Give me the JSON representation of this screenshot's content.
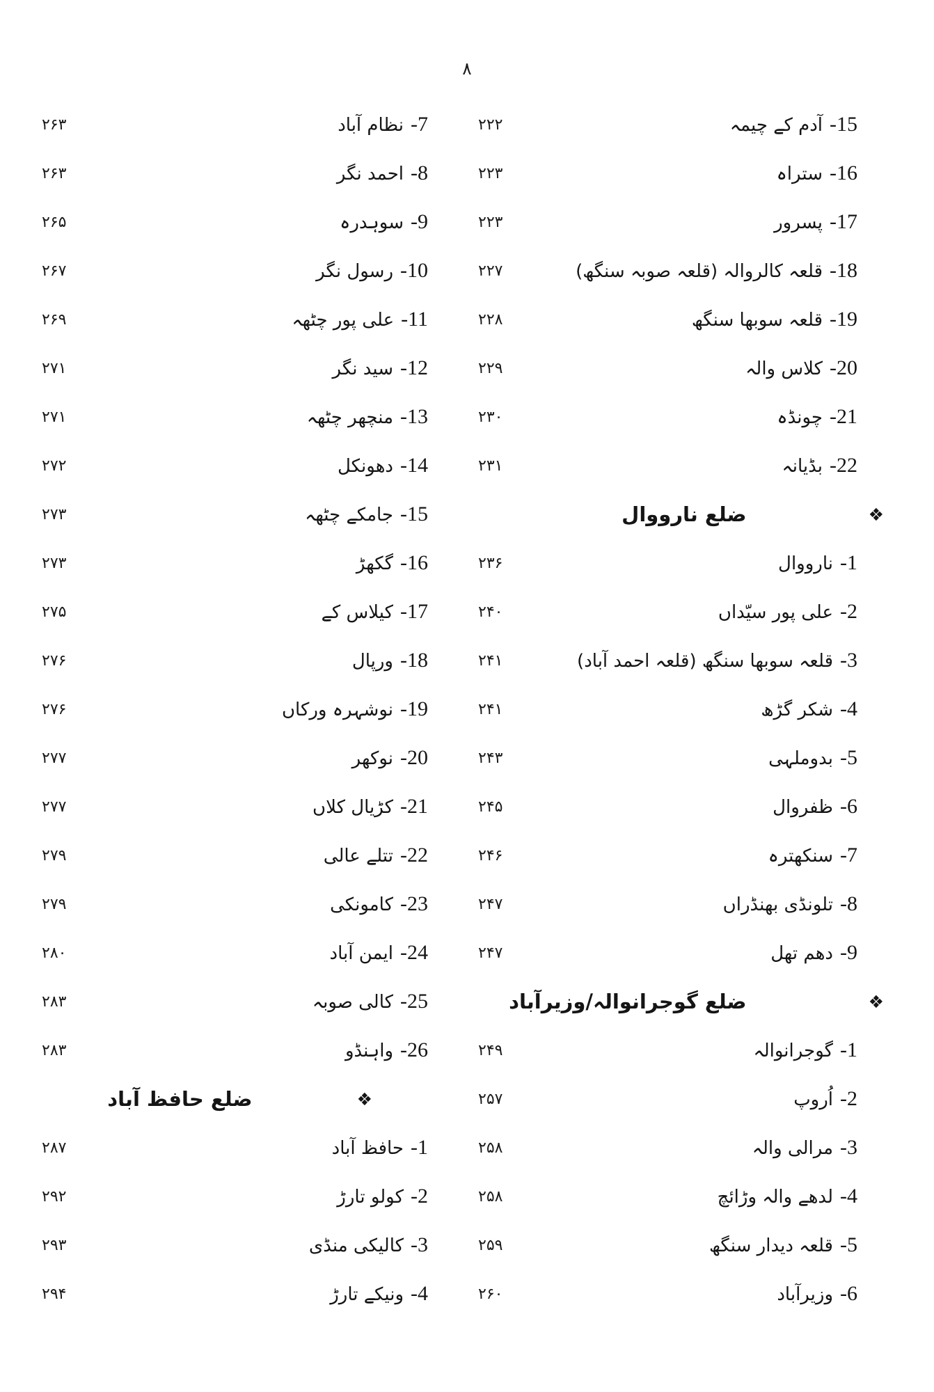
{
  "page": {
    "top_number": "۸",
    "diamond_mark": "❖"
  },
  "toc": {
    "rows": [
      {
        "left": {
          "no": "7",
          "name": "نظام آباد",
          "page": "۲۶۳"
        },
        "right": {
          "no": "15",
          "name": "آدم کے چیمہ",
          "page": "۲۲۲"
        }
      },
      {
        "left": {
          "no": "8",
          "name": "احمد نگر",
          "page": "۲۶۳"
        },
        "right": {
          "no": "16",
          "name": "ستراہ",
          "page": "۲۲۳"
        }
      },
      {
        "left": {
          "no": "9",
          "name": "سوہدرہ",
          "page": "۲۶۵"
        },
        "right": {
          "no": "17",
          "name": "پسرور",
          "page": "۲۲۳"
        }
      },
      {
        "left": {
          "no": "10",
          "name": "رسول نگر",
          "page": "۲۶۷"
        },
        "right": {
          "no": "18",
          "name": "قلعہ کالروالہ (قلعہ صوبہ سنگھ)",
          "page": "۲۲۷"
        }
      },
      {
        "left": {
          "no": "11",
          "name": "علی پور چٹھہ",
          "page": "۲۶۹"
        },
        "right": {
          "no": "19",
          "name": "قلعہ سوبھا سنگھ",
          "page": "۲۲۸"
        }
      },
      {
        "left": {
          "no": "12",
          "name": "سید نگر",
          "page": "۲۷۱"
        },
        "right": {
          "no": "20",
          "name": "کلاس والہ",
          "page": "۲۲۹"
        }
      },
      {
        "left": {
          "no": "13",
          "name": "منچھر چٹھہ",
          "page": "۲۷۱"
        },
        "right": {
          "no": "21",
          "name": "چونڈہ",
          "page": "۲۳۰"
        }
      },
      {
        "left": {
          "no": "14",
          "name": "دھونکل",
          "page": "۲۷۲"
        },
        "right": {
          "no": "22",
          "name": "بڈیانہ",
          "page": "۲۳۱"
        }
      },
      {
        "left": {
          "no": "15",
          "name": "جامکے چٹھہ",
          "page": "۲۷۳"
        },
        "right": {
          "heading": "ضلع نارووال"
        }
      },
      {
        "left": {
          "no": "16",
          "name": "گکھڑ",
          "page": "۲۷۳"
        },
        "right": {
          "no": "1",
          "name": "نارووال",
          "page": "۲۳۶"
        }
      },
      {
        "left": {
          "no": "17",
          "name": "کیلاس کے",
          "page": "۲۷۵"
        },
        "right": {
          "no": "2",
          "name": "علی پور سیّداں",
          "page": "۲۴۰"
        }
      },
      {
        "left": {
          "no": "18",
          "name": "ورپال",
          "page": "۲۷۶"
        },
        "right": {
          "no": "3",
          "name": "قلعہ سوبھا سنگھ (قلعہ احمد آباد)",
          "page": "۲۴۱"
        }
      },
      {
        "left": {
          "no": "19",
          "name": "نوشہرہ ورکاں",
          "page": "۲۷۶"
        },
        "right": {
          "no": "4",
          "name": "شکر گڑھ",
          "page": "۲۴۱"
        }
      },
      {
        "left": {
          "no": "20",
          "name": "نوکھر",
          "page": "۲۷۷"
        },
        "right": {
          "no": "5",
          "name": "بدوملہی",
          "page": "۲۴۳"
        }
      },
      {
        "left": {
          "no": "21",
          "name": "کڑیال کلاں",
          "page": "۲۷۷"
        },
        "right": {
          "no": "6",
          "name": "ظفروال",
          "page": "۲۴۵"
        }
      },
      {
        "left": {
          "no": "22",
          "name": "تتلے عالی",
          "page": "۲۷۹"
        },
        "right": {
          "no": "7",
          "name": "سنکھترہ",
          "page": "۲۴۶"
        }
      },
      {
        "left": {
          "no": "23",
          "name": "کامونکی",
          "page": "۲۷۹"
        },
        "right": {
          "no": "8",
          "name": "تلونڈی بھنڈراں",
          "page": "۲۴۷"
        }
      },
      {
        "left": {
          "no": "24",
          "name": "ایمن آباد",
          "page": "۲۸۰"
        },
        "right": {
          "no": "9",
          "name": "دھم تھل",
          "page": "۲۴۷"
        }
      },
      {
        "left": {
          "no": "25",
          "name": "کالی صوبہ",
          "page": "۲۸۳"
        },
        "right": {
          "heading": "ضلع گوجرانوالہ/وزیرآباد"
        }
      },
      {
        "left": {
          "no": "26",
          "name": "واہنڈو",
          "page": "۲۸۳"
        },
        "right": {
          "no": "1",
          "name": "گوجرانوالہ",
          "page": "۲۴۹"
        }
      },
      {
        "left": {
          "heading": "ضلع حافظ آباد"
        },
        "right": {
          "no": "2",
          "name": "اُروپ",
          "page": "۲۵۷"
        }
      },
      {
        "left": {
          "no": "1",
          "name": "حافظ آباد",
          "page": "۲۸۷"
        },
        "right": {
          "no": "3",
          "name": "مرالی والہ",
          "page": "۲۵۸"
        }
      },
      {
        "left": {
          "no": "2",
          "name": "کولو تارڑ",
          "page": "۲۹۲"
        },
        "right": {
          "no": "4",
          "name": "لدھے والہ وڑائچ",
          "page": "۲۵۸"
        }
      },
      {
        "left": {
          "no": "3",
          "name": "کالیکی منڈی",
          "page": "۲۹۳"
        },
        "right": {
          "no": "5",
          "name": "قلعہ دیدار سنگھ",
          "page": "۲۵۹"
        }
      },
      {
        "left": {
          "no": "4",
          "name": "ونیکے تارڑ",
          "page": "۲۹۴"
        },
        "right": {
          "no": "6",
          "name": "وزیرآباد",
          "page": "۲۶۰"
        }
      }
    ]
  }
}
